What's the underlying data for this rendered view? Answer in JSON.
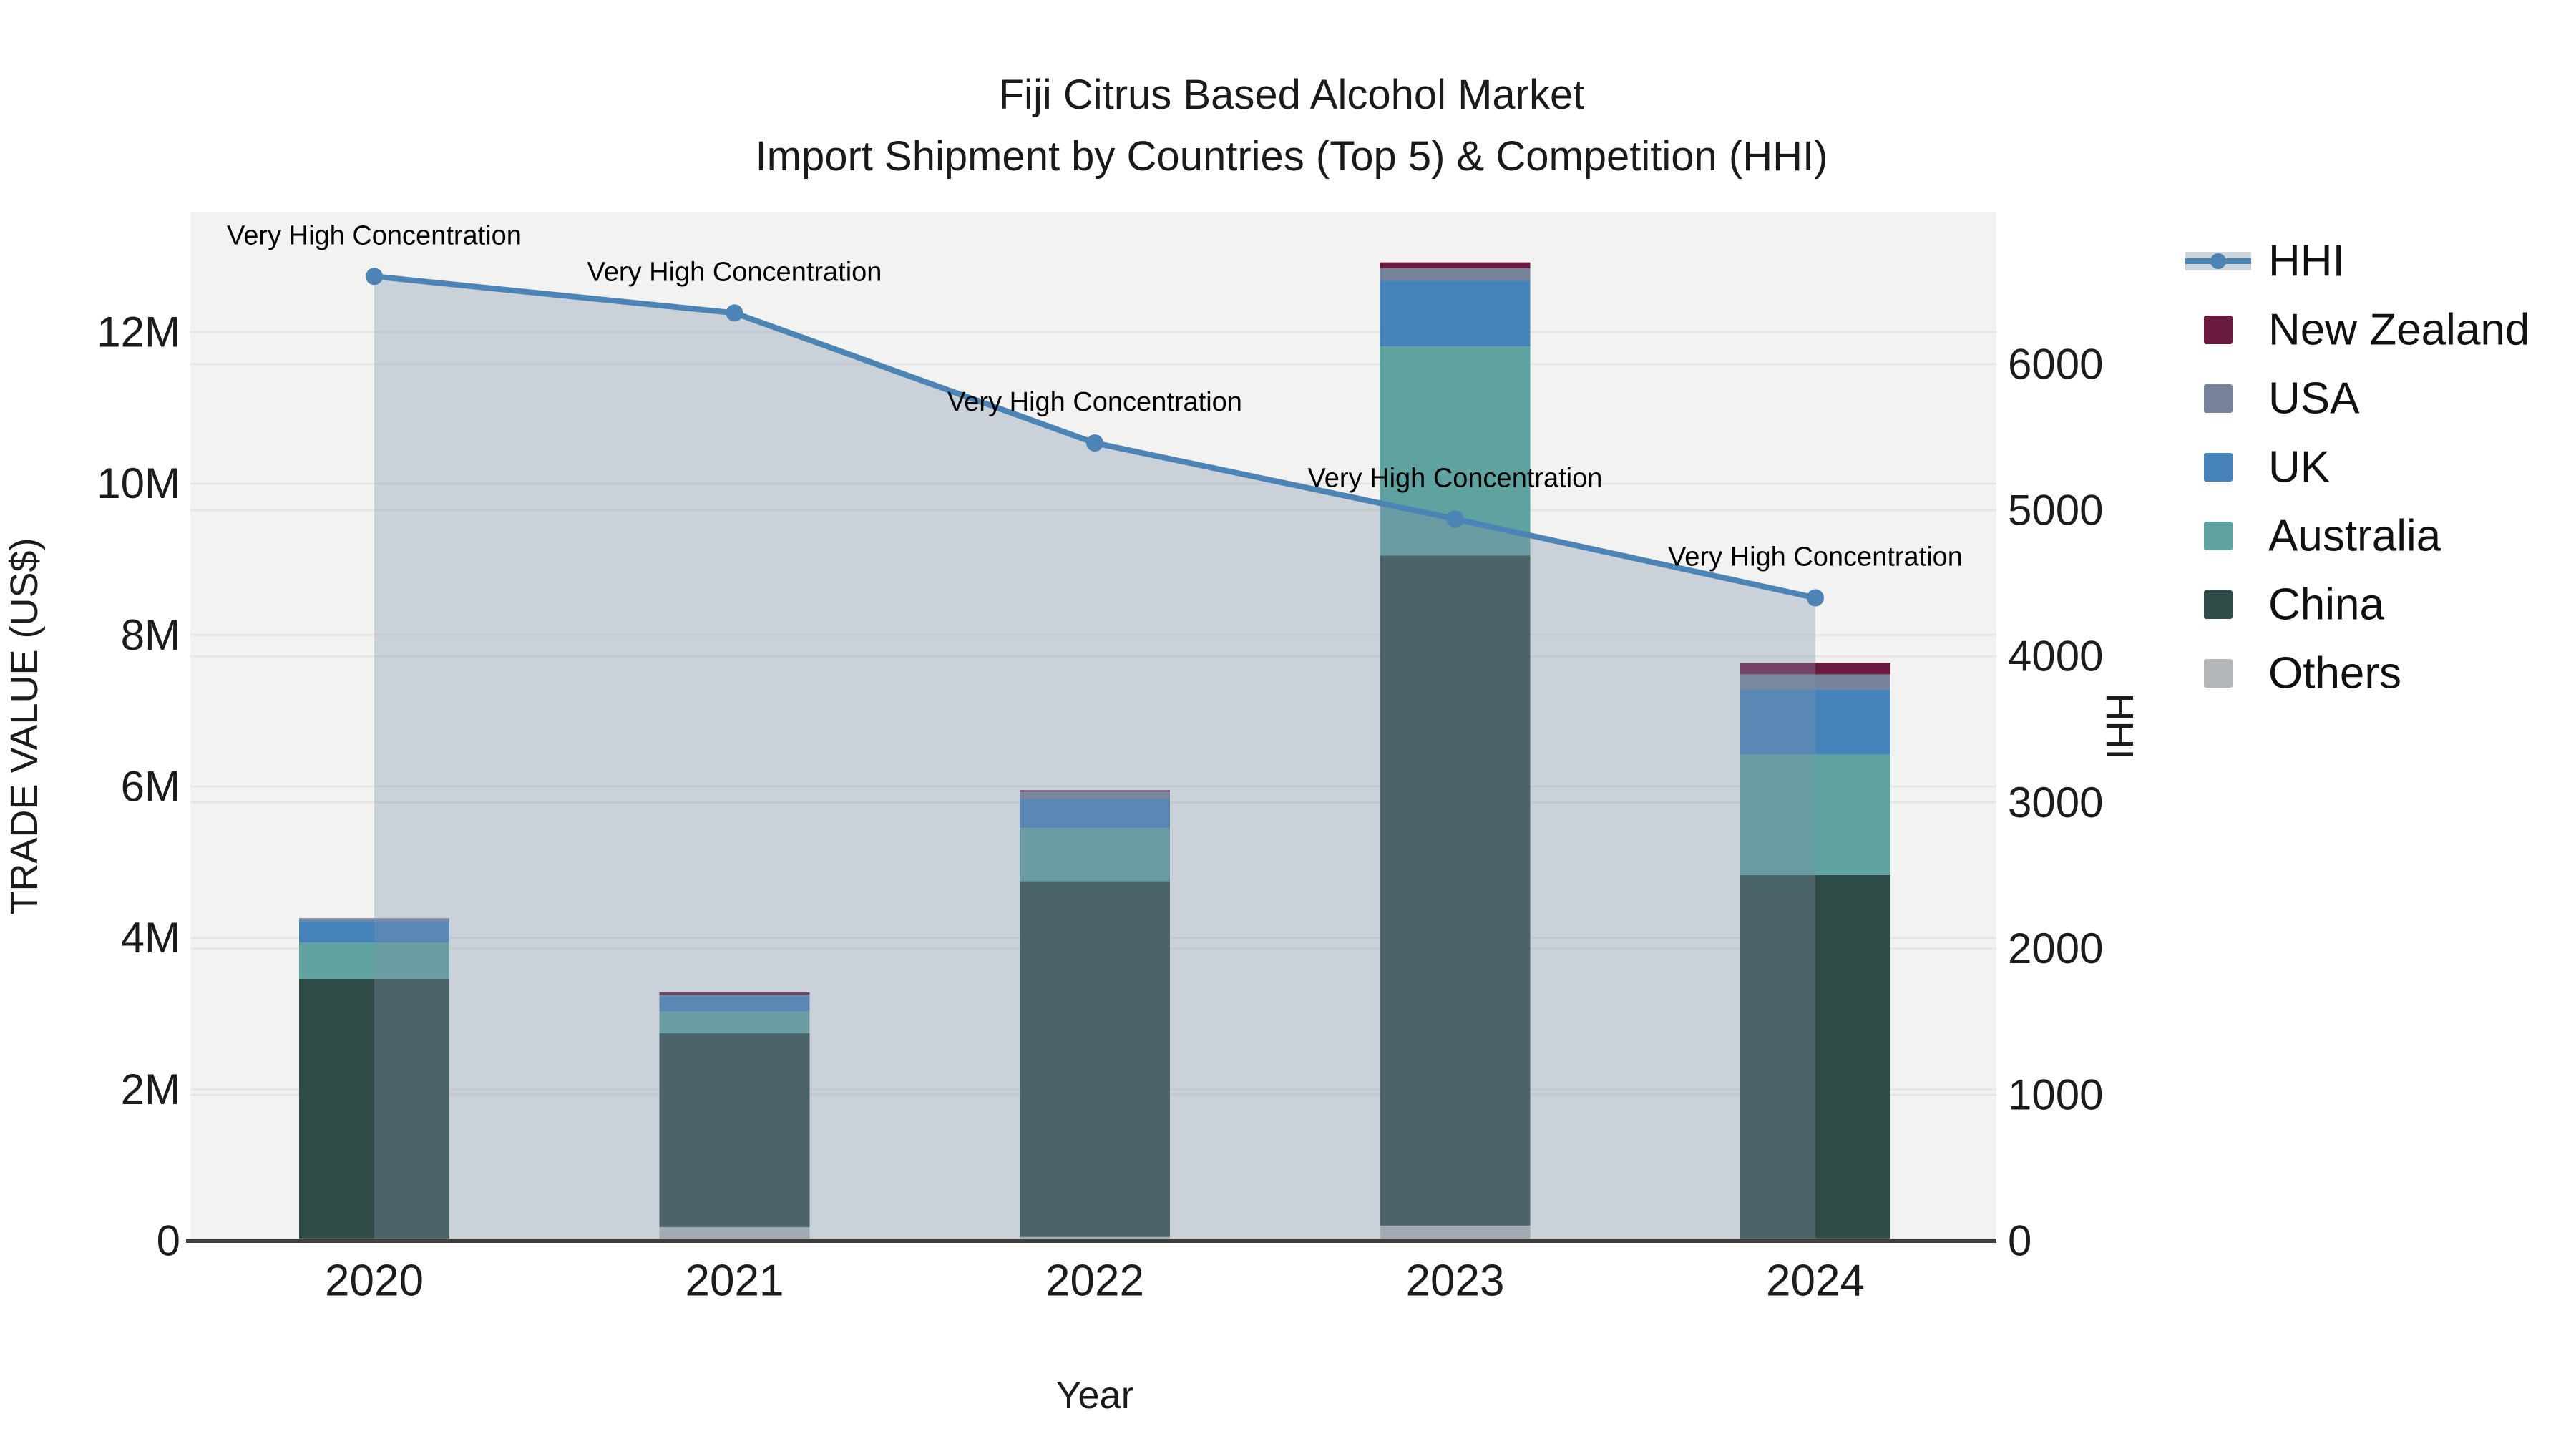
{
  "title": {
    "line1": "Fiji Citrus Based Alcohol Market",
    "line2": "Import Shipment by Countries (Top 5) & Competition (HHI)"
  },
  "x_axis": {
    "label": "Year",
    "ticks": [
      "2020",
      "2021",
      "2022",
      "2023",
      "2024"
    ]
  },
  "y_left": {
    "label": "TRADE VALUE (US$)",
    "ticks": [
      {
        "label": "0",
        "value": 0
      },
      {
        "label": "2M",
        "value": 2
      },
      {
        "label": "4M",
        "value": 4
      },
      {
        "label": "6M",
        "value": 6
      },
      {
        "label": "8M",
        "value": 8
      },
      {
        "label": "10M",
        "value": 10
      },
      {
        "label": "12M",
        "value": 12
      }
    ]
  },
  "y_right": {
    "label": "HHI",
    "ticks": [
      {
        "label": "0",
        "value": 0
      },
      {
        "label": "1000",
        "value": 1000
      },
      {
        "label": "2000",
        "value": 2000
      },
      {
        "label": "3000",
        "value": 3000
      },
      {
        "label": "4000",
        "value": 4000
      },
      {
        "label": "5000",
        "value": 5000
      },
      {
        "label": "6000",
        "value": 6000
      }
    ]
  },
  "legend": {
    "items": [
      {
        "label": "HHI",
        "type": "line",
        "color": "#4b84b5"
      },
      {
        "label": "New Zealand",
        "type": "square",
        "color": "#6b1b40"
      },
      {
        "label": "USA",
        "type": "square",
        "color": "#76839b"
      },
      {
        "label": "UK",
        "type": "square",
        "color": "#4583ba"
      },
      {
        "label": "Australia",
        "type": "square",
        "color": "#5ea3a0"
      },
      {
        "label": "China",
        "type": "square",
        "color": "#2f4c49"
      },
      {
        "label": "Others",
        "type": "square",
        "color": "#b4b7ba"
      }
    ]
  },
  "annotations": [
    {
      "year": "2020",
      "text": "Very High Concentration"
    },
    {
      "year": "2021",
      "text": "Very High Concentration"
    },
    {
      "year": "2022",
      "text": "Very High Concentration"
    },
    {
      "year": "2023",
      "text": "Very High Concentration"
    },
    {
      "year": "2024",
      "text": "Very High Concentration"
    }
  ],
  "colors": {
    "plot_background": "#f2f2f1",
    "gridline": "#e4e4e2",
    "axis_line": "#3f3f3d",
    "hhi_line": "#4b84b5",
    "hhi_area_fill_rgba": "rgba(128,146,170,0.34)",
    "hhi_legend_band": "#cfd5dd",
    "new_zealand": "#6b1b40",
    "usa": "#76839b",
    "uk": "#4583ba",
    "australia": "#5ea3a0",
    "china": "#2f4c49",
    "others": "#b4b7ba"
  },
  "chart_data": {
    "type": "bar+line",
    "categories": [
      "2020",
      "2021",
      "2022",
      "2023",
      "2024"
    ],
    "bar_value_unit": "million US$",
    "stack_order_bottom_to_top": [
      "Others",
      "China",
      "Australia",
      "UK",
      "USA",
      "New Zealand"
    ],
    "series": [
      {
        "name": "New Zealand",
        "values": [
          0,
          0.03,
          0.02,
          0.08,
          0.15
        ]
      },
      {
        "name": "USA",
        "values": [
          0.04,
          0.02,
          0.1,
          0.16,
          0.2
        ]
      },
      {
        "name": "UK",
        "values": [
          0.28,
          0.2,
          0.38,
          0.87,
          0.86
        ]
      },
      {
        "name": "Australia",
        "values": [
          0.48,
          0.29,
          0.7,
          2.76,
          1.59
        ]
      },
      {
        "name": "China",
        "values": [
          3.43,
          2.56,
          4.7,
          8.85,
          4.8
        ]
      },
      {
        "name": "Others",
        "values": [
          0.03,
          0.18,
          0.05,
          0.2,
          0.03
        ]
      }
    ],
    "bar_totals": [
      4.26,
      3.28,
      5.95,
      12.92,
      7.63
    ],
    "line_series": {
      "name": "HHI",
      "axis": "right",
      "values": [
        6600,
        6350,
        5460,
        4940,
        4400
      ]
    },
    "xlabel": "Year",
    "ylabel_left": "TRADE VALUE (US$)",
    "ylabel_right": "HHI",
    "ylim_left_musd": [
      0,
      13.6
    ],
    "ylim_right_hhi": [
      0,
      7040
    ],
    "grid": true,
    "legend_position": "right"
  }
}
